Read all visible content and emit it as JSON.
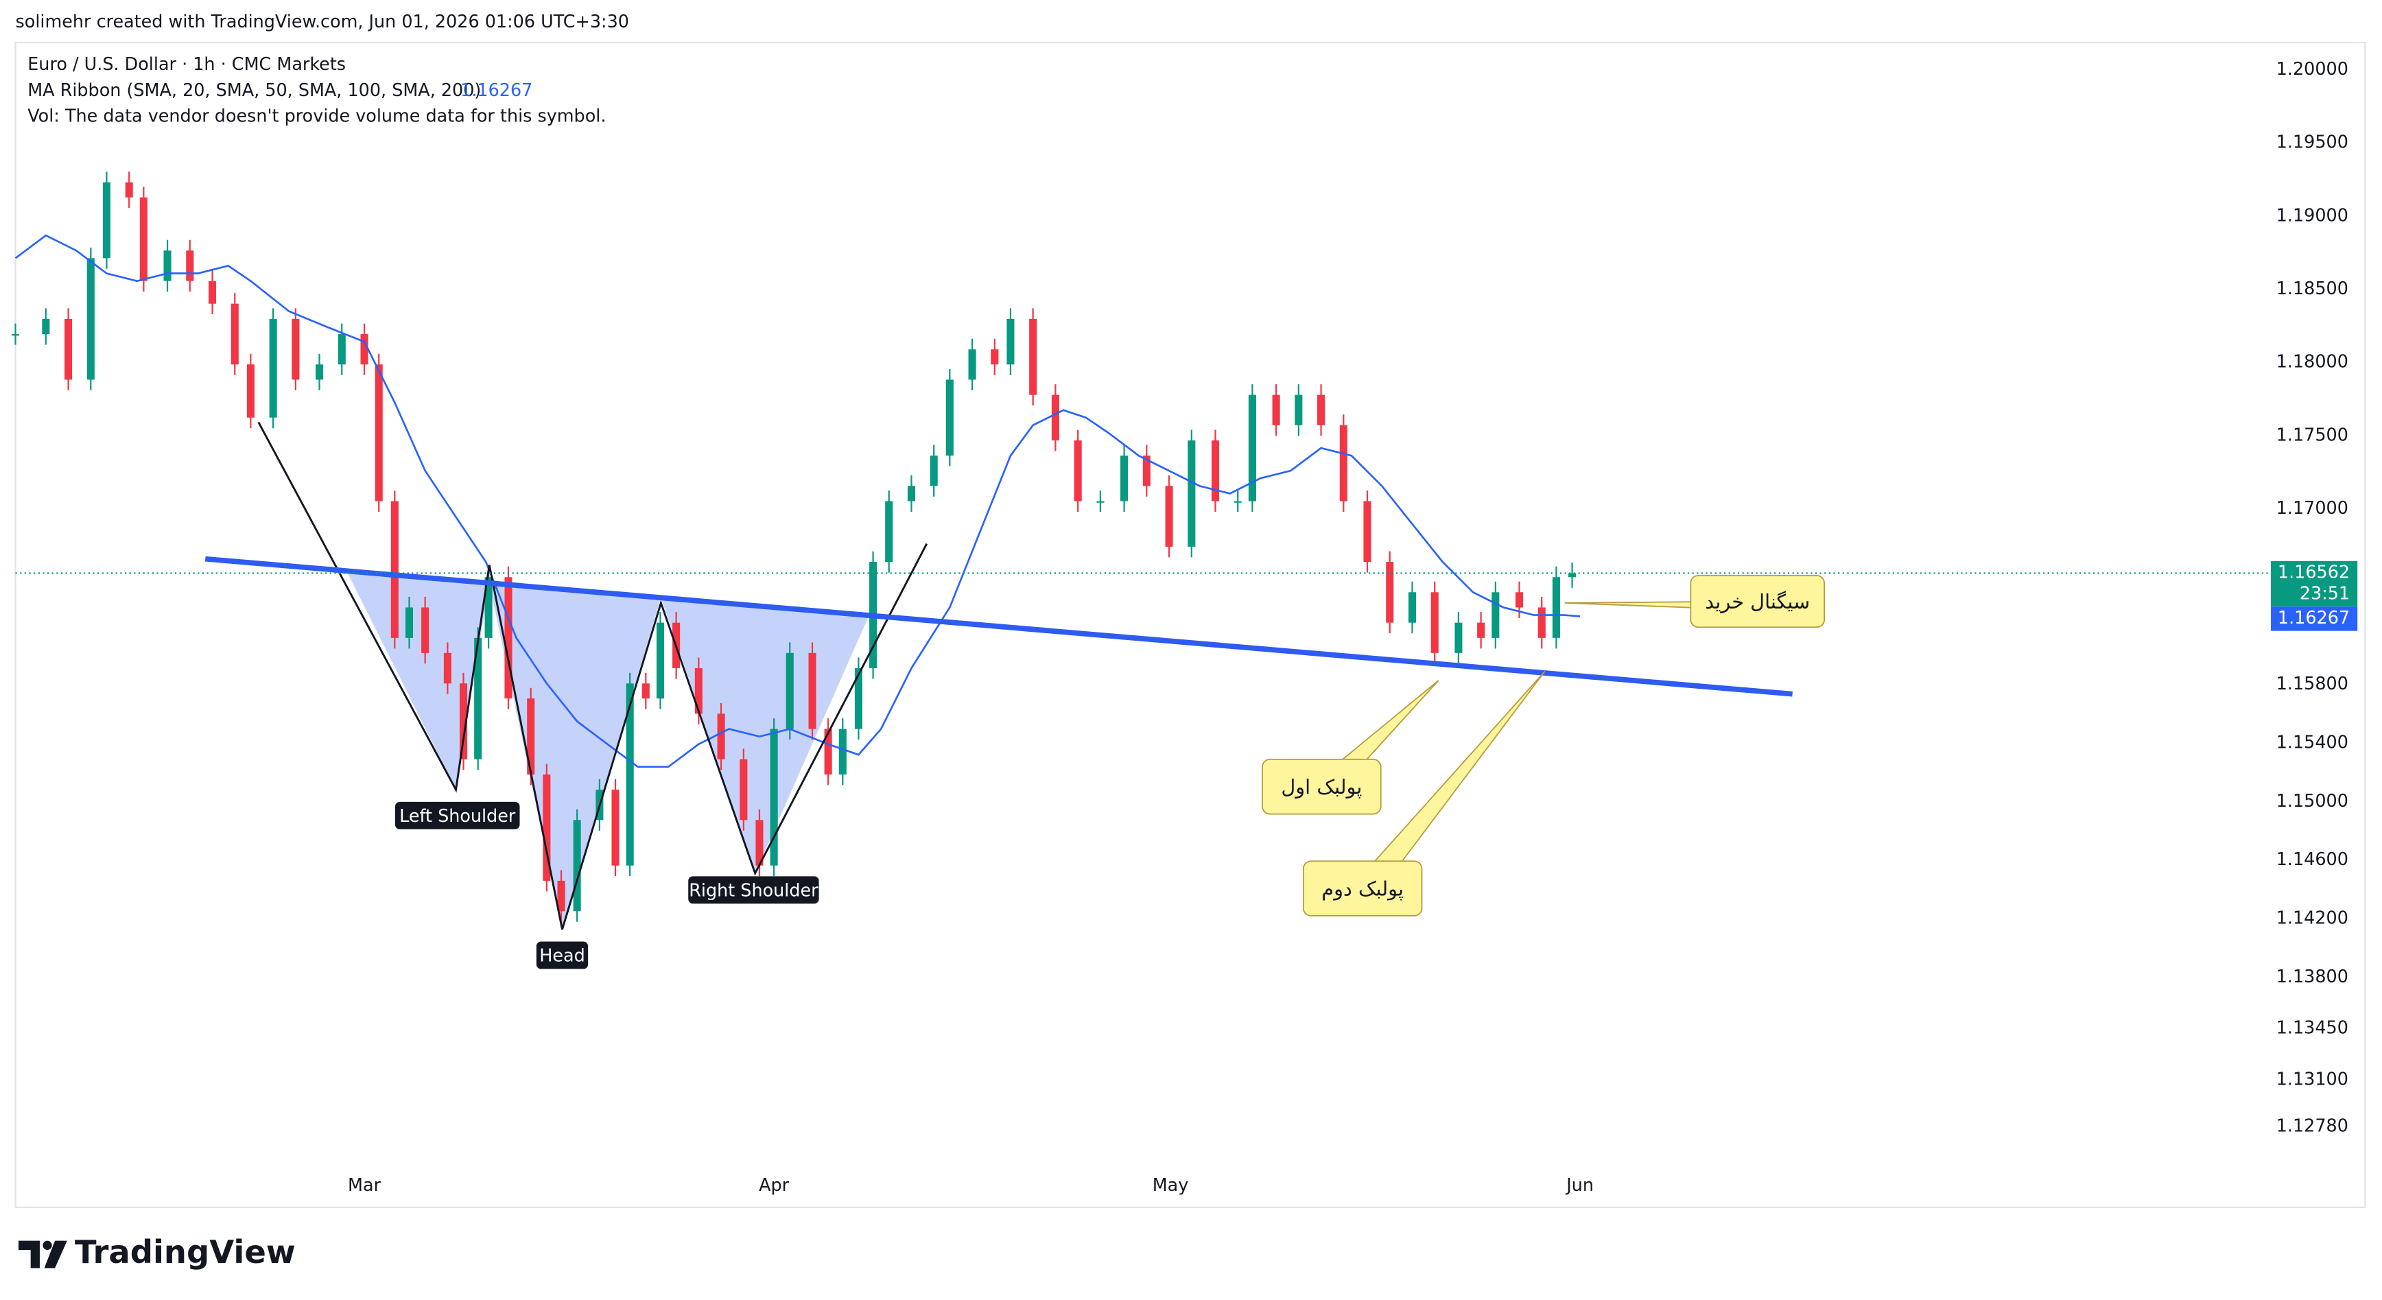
{
  "header": {
    "attribution": "solimehr created with TradingView.com, Jun 01, 2026 01:06 UTC+3:30",
    "volume_note": "Vol: The data vendor doesn't provide volume data for this symbol."
  },
  "footer": {
    "logo": "TradingView"
  },
  "chart_data": {
    "type": "candlestick",
    "title": "Euro / U.S. Dollar · 1h · CMC Markets",
    "color_up": "#089981",
    "color_down": "#f23645",
    "grid": false,
    "x": [
      -26.4,
      -24.1,
      -22.4,
      -20.7,
      -19.5,
      -17.8,
      -16.7,
      -14.9,
      -13.2,
      -11.5,
      -9.8,
      -8.6,
      -6.9,
      -5.2,
      -3.4,
      -1.7,
      0,
      1.1,
      2.3,
      3.4,
      4.6,
      6.3,
      7.5,
      8.6,
      9.4,
      10.9,
      12.6,
      13.8,
      14.9,
      16.1,
      17.8,
      19.0,
      20.1,
      21.3,
      22.4,
      23.6,
      25.3,
      27.0,
      28.7,
      29.9,
      31.0,
      32.2,
      33.9,
      35.1,
      36.2,
      37.4,
      38.5,
      39.7,
      41.4,
      43.1,
      44.3,
      46.0,
      47.7,
      48.9,
      50.6,
      52.3,
      54.0,
      55.7,
      57.5,
      59.2,
      60.9,
      62.6,
      64.4,
      66.1,
      67.2,
      69.0,
      70.7,
      72.4,
      74.1,
      75.9,
      77.6,
      79.3,
      81.0,
      82.8,
      84.5,
      85.6,
      87.4,
      89.1,
      90.2,
      91.4
    ],
    "values": [
      1.18195,
      1.18299,
      1.17884,
      1.18714,
      1.19232,
      1.19129,
      1.18558,
      1.18766,
      1.18558,
      1.18403,
      1.17988,
      1.17625,
      1.18299,
      1.17884,
      1.17988,
      1.18195,
      1.17988,
      1.17054,
      1.1612,
      1.16328,
      1.16017,
      1.15809,
      1.15291,
      1.1612,
      1.16535,
      1.15706,
      1.15187,
      1.14461,
      1.14253,
      1.14876,
      1.15083,
      1.14565,
      1.15809,
      1.15706,
      1.16224,
      1.15913,
      1.15602,
      1.15291,
      1.14876,
      1.14565,
      1.15498,
      1.16017,
      1.15498,
      1.15187,
      1.15498,
      1.15913,
      1.16639,
      1.17054,
      1.17158,
      1.17365,
      1.17884,
      1.18091,
      1.17988,
      1.18299,
      1.1778,
      1.17469,
      1.17054,
      1.17054,
      1.17365,
      1.17158,
      1.16743,
      1.17469,
      1.17054,
      1.17054,
      1.1778,
      1.17573,
      1.1778,
      1.17573,
      1.17054,
      1.16639,
      1.16224,
      1.16432,
      1.16017,
      1.16224,
      1.1612,
      1.16432,
      1.16328,
      1.1612,
      1.16535,
      1.16562
    ],
    "countdown": "23:51",
    "indicator": {
      "label": "MA Ribbon (SMA, 20, SMA, 50, SMA, 100, SMA, 200)",
      "color": "#2962ff",
      "x": [
        -26.4,
        -24.1,
        -21.8,
        -19.5,
        -17.2,
        -14.9,
        -12.6,
        -10.3,
        -8.6,
        -5.7,
        -2.9,
        0,
        2.3,
        4.6,
        6.9,
        9.2,
        11.5,
        13.8,
        16.1,
        18.4,
        20.7,
        23.0,
        25.3,
        27.6,
        29.9,
        32.2,
        35.1,
        37.4,
        39.1,
        41.4,
        44.3,
        46.6,
        48.9,
        50.6,
        52.9,
        54.6,
        56.3,
        58.6,
        60.9,
        63.2,
        65.5,
        67.8,
        70.1,
        72.4,
        74.7,
        77.0,
        79.3,
        81.6,
        83.9,
        86.2,
        88.5,
        90.8,
        92.0
      ],
      "values": [
        1.18714,
        1.18869,
        1.18766,
        1.1861,
        1.18558,
        1.1861,
        1.1861,
        1.18662,
        1.18558,
        1.18351,
        1.18247,
        1.18143,
        1.17728,
        1.17262,
        1.1695,
        1.16639,
        1.1612,
        1.15809,
        1.1555,
        1.15394,
        1.15239,
        1.15239,
        1.15394,
        1.15498,
        1.15446,
        1.15498,
        1.15394,
        1.15322,
        1.15498,
        1.15913,
        1.16328,
        1.16847,
        1.17365,
        1.17573,
        1.17676,
        1.17625,
        1.17521,
        1.17365,
        1.17262,
        1.17158,
        1.17106,
        1.1721,
        1.17262,
        1.17417,
        1.17365,
        1.17158,
        1.16898,
        1.16639,
        1.16432,
        1.16328,
        1.16276,
        1.16276,
        1.16267
      ]
    },
    "xlim": [
      -26.4,
      143.7
    ],
    "xticks": [
      {
        "value": 0,
        "label": "Mar"
      },
      {
        "value": 31,
        "label": "Apr"
      },
      {
        "value": 61,
        "label": "May"
      },
      {
        "value": 92,
        "label": "Jun"
      }
    ],
    "ylim": [
      1.1223,
      1.20187
    ],
    "yticks": [
      {
        "value": 1.2,
        "label": "1.20000"
      },
      {
        "value": 1.195,
        "label": "1.19500"
      },
      {
        "value": 1.19,
        "label": "1.19000"
      },
      {
        "value": 1.185,
        "label": "1.18500"
      },
      {
        "value": 1.18,
        "label": "1.18000"
      },
      {
        "value": 1.175,
        "label": "1.17500"
      },
      {
        "value": 1.17,
        "label": "1.17000"
      },
      {
        "value": 1.158,
        "label": "1.15800"
      },
      {
        "value": 1.154,
        "label": "1.15400"
      },
      {
        "value": 1.15,
        "label": "1.15000"
      },
      {
        "value": 1.146,
        "label": "1.14600"
      },
      {
        "value": 1.142,
        "label": "1.14200"
      },
      {
        "value": 1.138,
        "label": "1.13800"
      },
      {
        "value": 1.1345,
        "label": "1.13450"
      },
      {
        "value": 1.131,
        "label": "1.13100"
      },
      {
        "value": 1.1278,
        "label": "1.12780"
      }
    ],
    "annotations": {
      "left_shoulder": "Left Shoulder",
      "head": "Head",
      "right_shoulder": "Right Shoulder",
      "buy_signal": "سیگنال خرید",
      "pullback_1": "پولبک اول",
      "pullback_2": "پولبک دوم"
    }
  }
}
